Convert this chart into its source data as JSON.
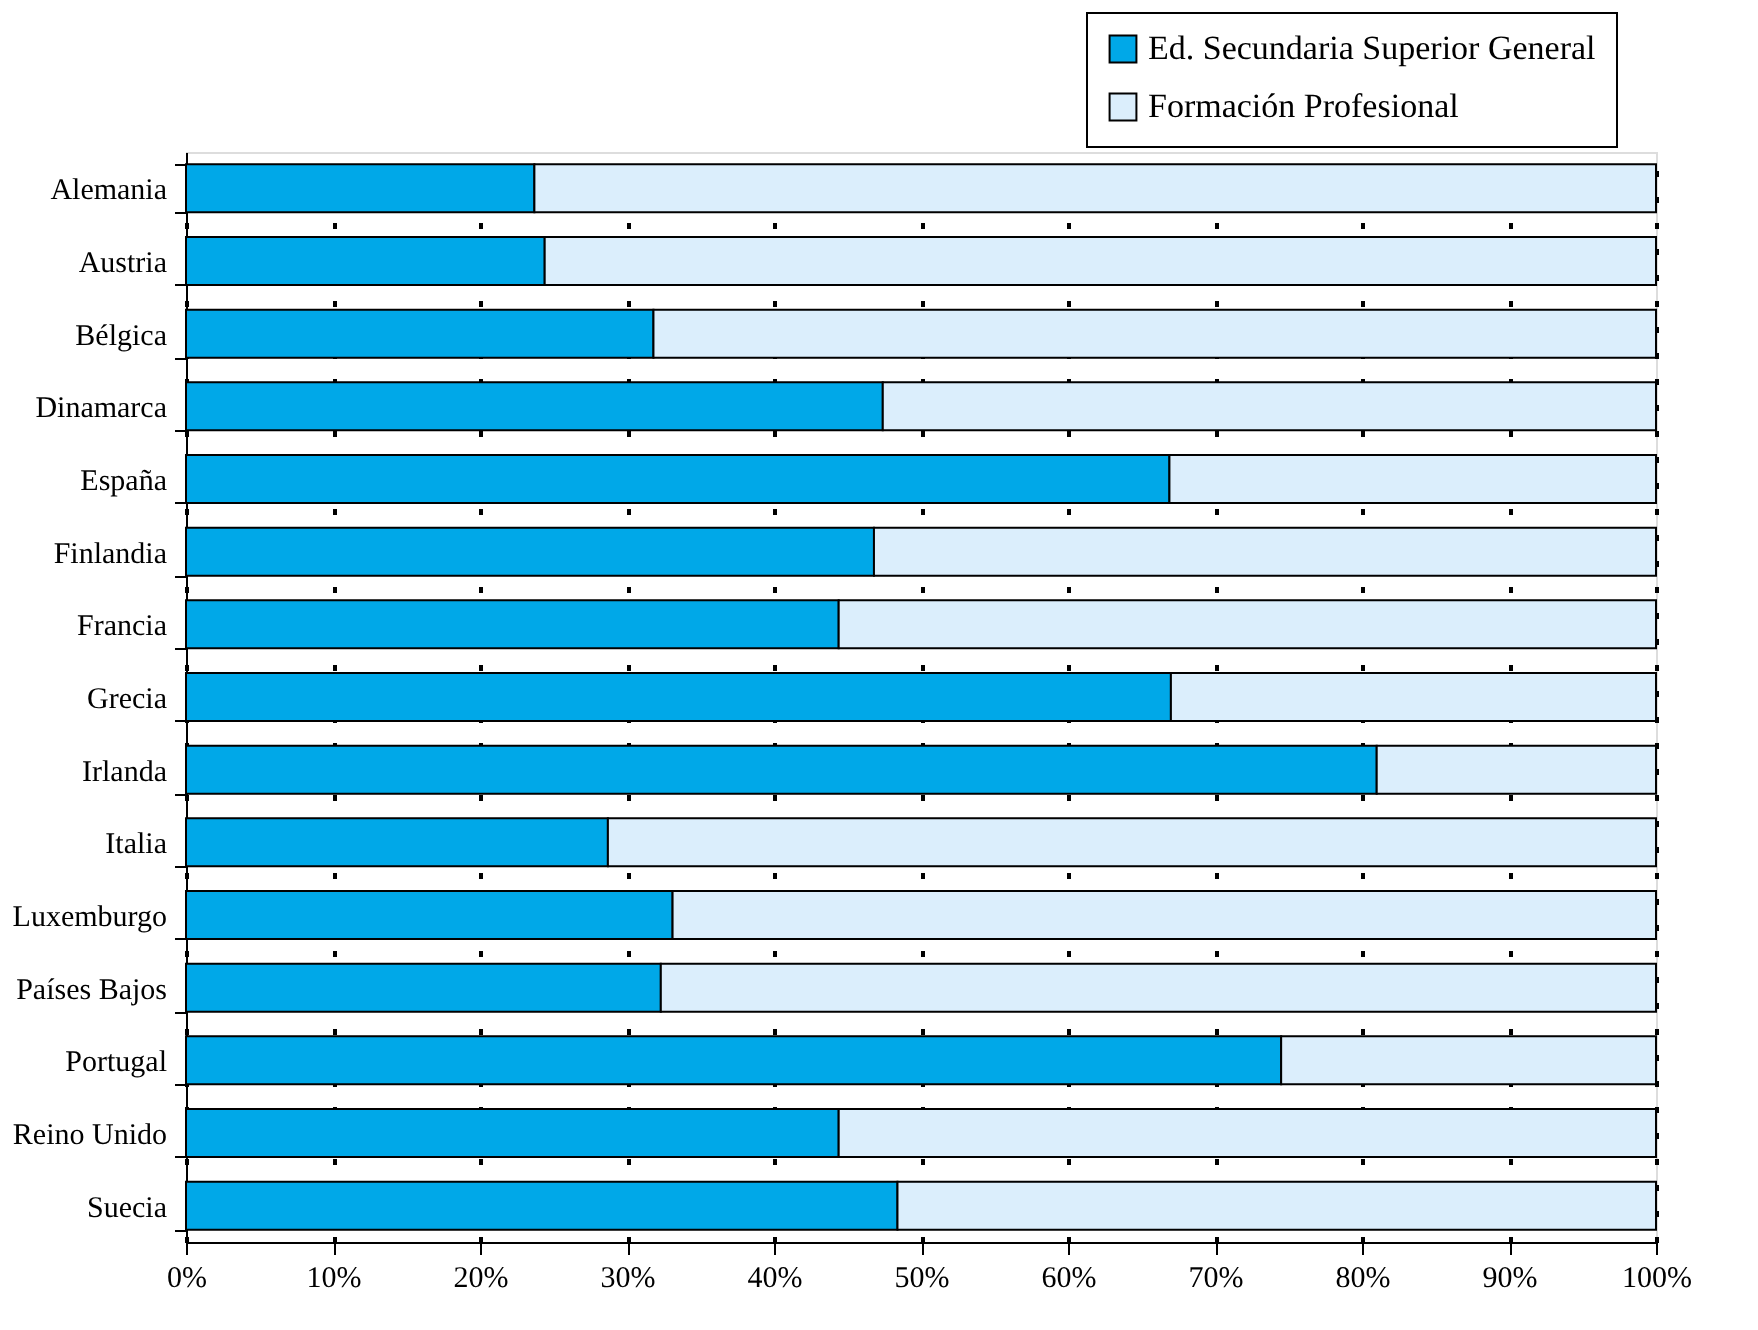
{
  "chart_data": {
    "type": "bar",
    "orientation": "horizontal",
    "stacked": true,
    "categories": [
      "Alemania",
      "Austria",
      "Bélgica",
      "Dinamarca",
      "España",
      "Finlandia",
      "Francia",
      "Grecia",
      "Irlanda",
      "Italia",
      "Luxemburgo",
      "Países Bajos",
      "Portugal",
      "Reino Unido",
      "Suecia"
    ],
    "series": [
      {
        "name": "Ed. Secundaria Superior General",
        "color": "#00a8e8",
        "values": [
          23.7,
          24.4,
          31.8,
          47.4,
          66.9,
          46.8,
          44.4,
          67.0,
          81.0,
          28.7,
          33.1,
          32.3,
          74.5,
          44.4,
          48.4
        ]
      },
      {
        "name": "Formación Profesional",
        "color": "#dbeefc",
        "values": [
          76.3,
          75.6,
          68.2,
          52.6,
          33.1,
          53.2,
          55.6,
          33.0,
          19.0,
          71.3,
          66.9,
          67.7,
          25.5,
          55.6,
          51.6
        ]
      }
    ],
    "xlim": [
      0,
      100
    ],
    "xticks": [
      {
        "value": 0,
        "label": "0%"
      },
      {
        "value": 10,
        "label": "10%"
      },
      {
        "value": 20,
        "label": "20%"
      },
      {
        "value": 30,
        "label": "30%"
      },
      {
        "value": 40,
        "label": "40%"
      },
      {
        "value": 50,
        "label": "50%"
      },
      {
        "value": 60,
        "label": "60%"
      },
      {
        "value": 70,
        "label": "70%"
      },
      {
        "value": 80,
        "label": "80%"
      },
      {
        "value": 90,
        "label": "90%"
      },
      {
        "value": 100,
        "label": "100%"
      }
    ],
    "grid": "x",
    "legend": "top right"
  }
}
